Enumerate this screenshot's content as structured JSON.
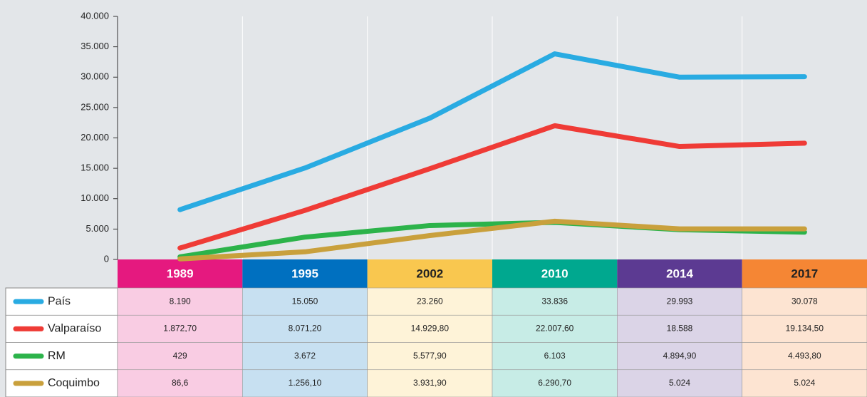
{
  "chart_data": {
    "type": "line",
    "categories": [
      "1989",
      "1995",
      "2002",
      "2010",
      "2014",
      "2017"
    ],
    "category_colors": [
      "#e5197f",
      "#0070c0",
      "#f9c74f",
      "#00a88f",
      "#5c3a92",
      "#f58634"
    ],
    "series": [
      {
        "name": "País",
        "color": "#29abe2",
        "values": [
          8190,
          15050,
          23260,
          33836,
          29993,
          30078
        ],
        "value_labels": [
          "8.190",
          "15.050",
          "23.260",
          "33.836",
          "29.993",
          "30.078"
        ]
      },
      {
        "name": "Valparaíso",
        "color": "#ef3b36",
        "values": [
          1872.7,
          8071.2,
          14929.8,
          22007.6,
          18588,
          19134.5
        ],
        "value_labels": [
          "1.872,70",
          "8.071,20",
          "14.929,80",
          "22.007,60",
          "18.588",
          "19.134,50"
        ]
      },
      {
        "name": "RM",
        "color": "#2cb34a",
        "values": [
          429,
          3672,
          5577.9,
          6103,
          4894.9,
          4493.8
        ],
        "value_labels": [
          "429",
          "3.672",
          "5.577,90",
          "6.103",
          "4.894,90",
          "4.493,80"
        ]
      },
      {
        "name": "Coquimbo",
        "color": "#c9a03c",
        "values": [
          86.6,
          1256.1,
          3931.9,
          6290.7,
          5024,
          5024
        ],
        "value_labels": [
          "86,6",
          "1.256,10",
          "3.931,90",
          "6.290,70",
          "5.024",
          "5.024"
        ]
      }
    ],
    "ylim": [
      0,
      40000
    ],
    "yticks": [
      0,
      {
        "value": 5000,
        "label": "5.000"
      },
      {
        "value": 10000,
        "label": "10.000"
      },
      {
        "value": 15000,
        "label": "15.000"
      },
      {
        "value": 20000,
        "label": "20.000"
      },
      {
        "value": 25000,
        "label": "25.000"
      },
      {
        "value": 30000,
        "label": "30.000"
      },
      {
        "value": 35000,
        "label": "35.000"
      },
      {
        "value": 40000,
        "label": "40.000"
      }
    ]
  }
}
